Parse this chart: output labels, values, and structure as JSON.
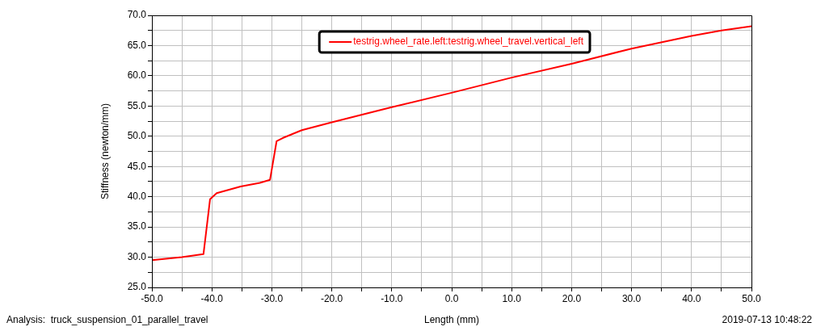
{
  "chart_data": {
    "type": "line",
    "xlabel": "Length (mm)",
    "ylabel": "Stiffness (newton/mm)",
    "annotations": [
      "Analysis:  truck_suspension_01_parallel_travel",
      "2019-07-13 10:48:22"
    ],
    "xlim": [
      -50,
      50
    ],
    "xticks": [
      {
        "value": -50,
        "label": "-50.0"
      },
      {
        "value": -45,
        "label": null
      },
      {
        "value": -40,
        "label": "-40.0"
      },
      {
        "value": -35,
        "label": null
      },
      {
        "value": -30,
        "label": "-30.0"
      },
      {
        "value": -25,
        "label": null
      },
      {
        "value": -20,
        "label": "-20.0"
      },
      {
        "value": -15,
        "label": null
      },
      {
        "value": -10,
        "label": "-10.0"
      },
      {
        "value": -5,
        "label": null
      },
      {
        "value": 0,
        "label": "0.0"
      },
      {
        "value": 5,
        "label": null
      },
      {
        "value": 10,
        "label": "10.0"
      },
      {
        "value": 15,
        "label": null
      },
      {
        "value": 20,
        "label": "20.0"
      },
      {
        "value": 25,
        "label": null
      },
      {
        "value": 30,
        "label": "30.0"
      },
      {
        "value": 35,
        "label": null
      },
      {
        "value": 40,
        "label": "40.0"
      },
      {
        "value": 45,
        "label": null
      },
      {
        "value": 50,
        "label": "50.0"
      }
    ],
    "ylim": [
      25,
      70
    ],
    "yticks": [
      {
        "value": 25,
        "label": "25.0"
      },
      {
        "value": 27.5,
        "label": null
      },
      {
        "value": 30,
        "label": "30.0"
      },
      {
        "value": 32.5,
        "label": null
      },
      {
        "value": 35,
        "label": "35.0"
      },
      {
        "value": 37.5,
        "label": null
      },
      {
        "value": 40,
        "label": "40.0"
      },
      {
        "value": 42.5,
        "label": null
      },
      {
        "value": 45,
        "label": "45.0"
      },
      {
        "value": 47.5,
        "label": null
      },
      {
        "value": 50,
        "label": "50.0"
      },
      {
        "value": 52.5,
        "label": null
      },
      {
        "value": 55,
        "label": "55.0"
      },
      {
        "value": 57.5,
        "label": null
      },
      {
        "value": 60,
        "label": "60.0"
      },
      {
        "value": 62.5,
        "label": null
      },
      {
        "value": 65,
        "label": "65.0"
      },
      {
        "value": 67.5,
        "label": null
      },
      {
        "value": 70,
        "label": "70.0"
      }
    ],
    "grid": true,
    "legend": "top right",
    "marker": "none",
    "line_style": "solid",
    "series": [
      {
        "name": "testrig.wheel_rate.left:testrig.wheel_travel.vertical_left",
        "color": "#ff0000",
        "x": [
          -50,
          -45,
          -41.4,
          -40.3,
          -39.2,
          -35.2,
          -32,
          -30.3,
          -29.2,
          -28.2,
          -25,
          -20,
          -10,
          0,
          10,
          20,
          30,
          40,
          45,
          50
        ],
        "values": [
          29.5,
          30.0,
          30.5,
          39.6,
          40.6,
          41.7,
          42.3,
          42.8,
          49.2,
          49.7,
          51.0,
          52.3,
          54.8,
          57.2,
          59.7,
          62.0,
          64.5,
          66.6,
          67.5,
          68.2
        ]
      }
    ]
  }
}
